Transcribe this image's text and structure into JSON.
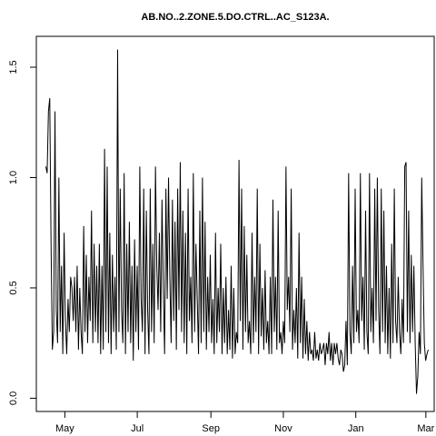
{
  "chart_data": {
    "type": "line",
    "title": "AB.NO..2.ZONE.5.DO.CTRL..AC_S123A.",
    "xlabel": "",
    "ylabel": "",
    "x_ticks": [
      "May",
      "Jul",
      "Sep",
      "Nov",
      "Jan",
      "Mar"
    ],
    "y_ticks": [
      "0.0",
      "0.5",
      "1.0",
      "1.5"
    ],
    "y_tick_values": [
      0.0,
      0.5,
      1.0,
      1.5
    ],
    "ylim": [
      -0.06,
      1.64
    ],
    "xlim": [
      "2016-04-07",
      "2017-03-08"
    ],
    "grid": false,
    "series": [
      {
        "x_start": "2016-04-15",
        "x_end": "2017-03-03",
        "values": [
          1.05,
          1.02,
          1.3,
          1.36,
          0.7,
          0.22,
          0.3,
          1.3,
          0.4,
          0.25,
          1.0,
          0.3,
          0.6,
          0.2,
          0.75,
          0.35,
          0.2,
          0.45,
          0.3,
          0.55,
          0.5,
          0.35,
          0.55,
          0.3,
          0.6,
          0.22,
          0.5,
          0.3,
          0.2,
          0.78,
          0.3,
          0.65,
          0.25,
          0.55,
          0.35,
          0.85,
          0.25,
          0.7,
          0.3,
          0.6,
          0.25,
          0.7,
          0.2,
          0.6,
          0.22,
          1.13,
          0.3,
          1.05,
          0.25,
          0.75,
          0.2,
          0.65,
          0.3,
          0.55,
          0.22,
          1.58,
          0.3,
          0.95,
          0.4,
          0.25,
          1.02,
          0.2,
          0.7,
          0.3,
          0.8,
          0.25,
          0.6,
          0.17,
          0.72,
          0.3,
          0.6,
          0.22,
          1.05,
          0.45,
          0.3,
          0.95,
          0.2,
          0.85,
          0.4,
          0.2,
          0.95,
          0.3,
          0.7,
          0.25,
          1.05,
          0.6,
          0.4,
          0.75,
          0.3,
          0.9,
          0.5,
          0.2,
          0.95,
          0.45,
          1.0,
          0.55,
          0.25,
          0.9,
          0.35,
          0.8,
          0.22,
          0.95,
          0.4,
          1.07,
          0.3,
          0.85,
          0.25,
          0.75,
          0.2,
          0.95,
          0.35,
          0.55,
          0.25,
          1.02,
          0.3,
          0.7,
          0.45,
          0.2,
          0.85,
          0.25,
          1.0,
          0.3,
          0.8,
          0.22,
          0.55,
          0.3,
          0.65,
          0.25,
          0.45,
          0.2,
          0.75,
          0.25,
          0.5,
          0.3,
          0.7,
          0.2,
          0.5,
          0.25,
          0.55,
          0.2,
          0.4,
          0.22,
          0.6,
          0.18,
          0.5,
          0.2,
          0.3,
          0.25,
          1.08,
          0.35,
          0.95,
          0.22,
          0.78,
          0.3,
          0.65,
          0.25,
          0.35,
          0.2,
          0.75,
          0.25,
          0.55,
          0.3,
          0.95,
          0.2,
          0.7,
          0.28,
          0.5,
          0.22,
          0.58,
          0.25,
          0.35,
          0.2,
          0.55,
          0.2,
          0.9,
          0.3,
          0.55,
          0.22,
          0.85,
          0.25,
          0.3,
          0.2,
          0.35,
          0.25,
          1.05,
          0.4,
          0.55,
          0.3,
          0.95,
          0.22,
          0.4,
          0.25,
          0.5,
          0.18,
          0.75,
          0.25,
          0.55,
          0.18,
          0.45,
          0.2,
          0.35,
          0.17,
          0.3,
          0.2,
          0.22,
          0.17,
          0.3,
          0.18,
          0.22,
          0.17,
          0.25,
          0.2,
          0.22,
          0.25,
          0.15,
          0.25,
          0.2,
          0.3,
          0.17,
          0.25,
          0.15,
          0.25,
          0.2,
          0.25,
          0.18,
          0.15,
          0.22,
          0.2,
          0.12,
          0.15,
          0.35,
          0.15,
          1.02,
          0.3,
          0.2,
          0.6,
          0.25,
          0.95,
          0.3,
          0.4,
          0.25,
          1.02,
          0.35,
          0.55,
          0.22,
          0.85,
          0.3,
          0.2,
          1.02,
          0.3,
          0.5,
          0.25,
          0.95,
          0.35,
          1.0,
          0.4,
          0.2,
          0.95,
          0.3,
          0.85,
          0.25,
          0.6,
          0.2,
          0.5,
          0.18,
          0.7,
          0.25,
          0.95,
          0.35,
          0.25,
          0.55,
          0.3,
          0.2,
          0.45,
          0.25,
          1.05,
          1.07,
          0.3,
          0.85,
          0.25,
          0.65,
          0.3,
          0.6,
          0.25,
          0.02,
          0.1,
          0.3,
          0.2,
          1.0,
          0.6,
          0.25,
          0.17,
          0.2,
          0.22
        ]
      }
    ]
  }
}
